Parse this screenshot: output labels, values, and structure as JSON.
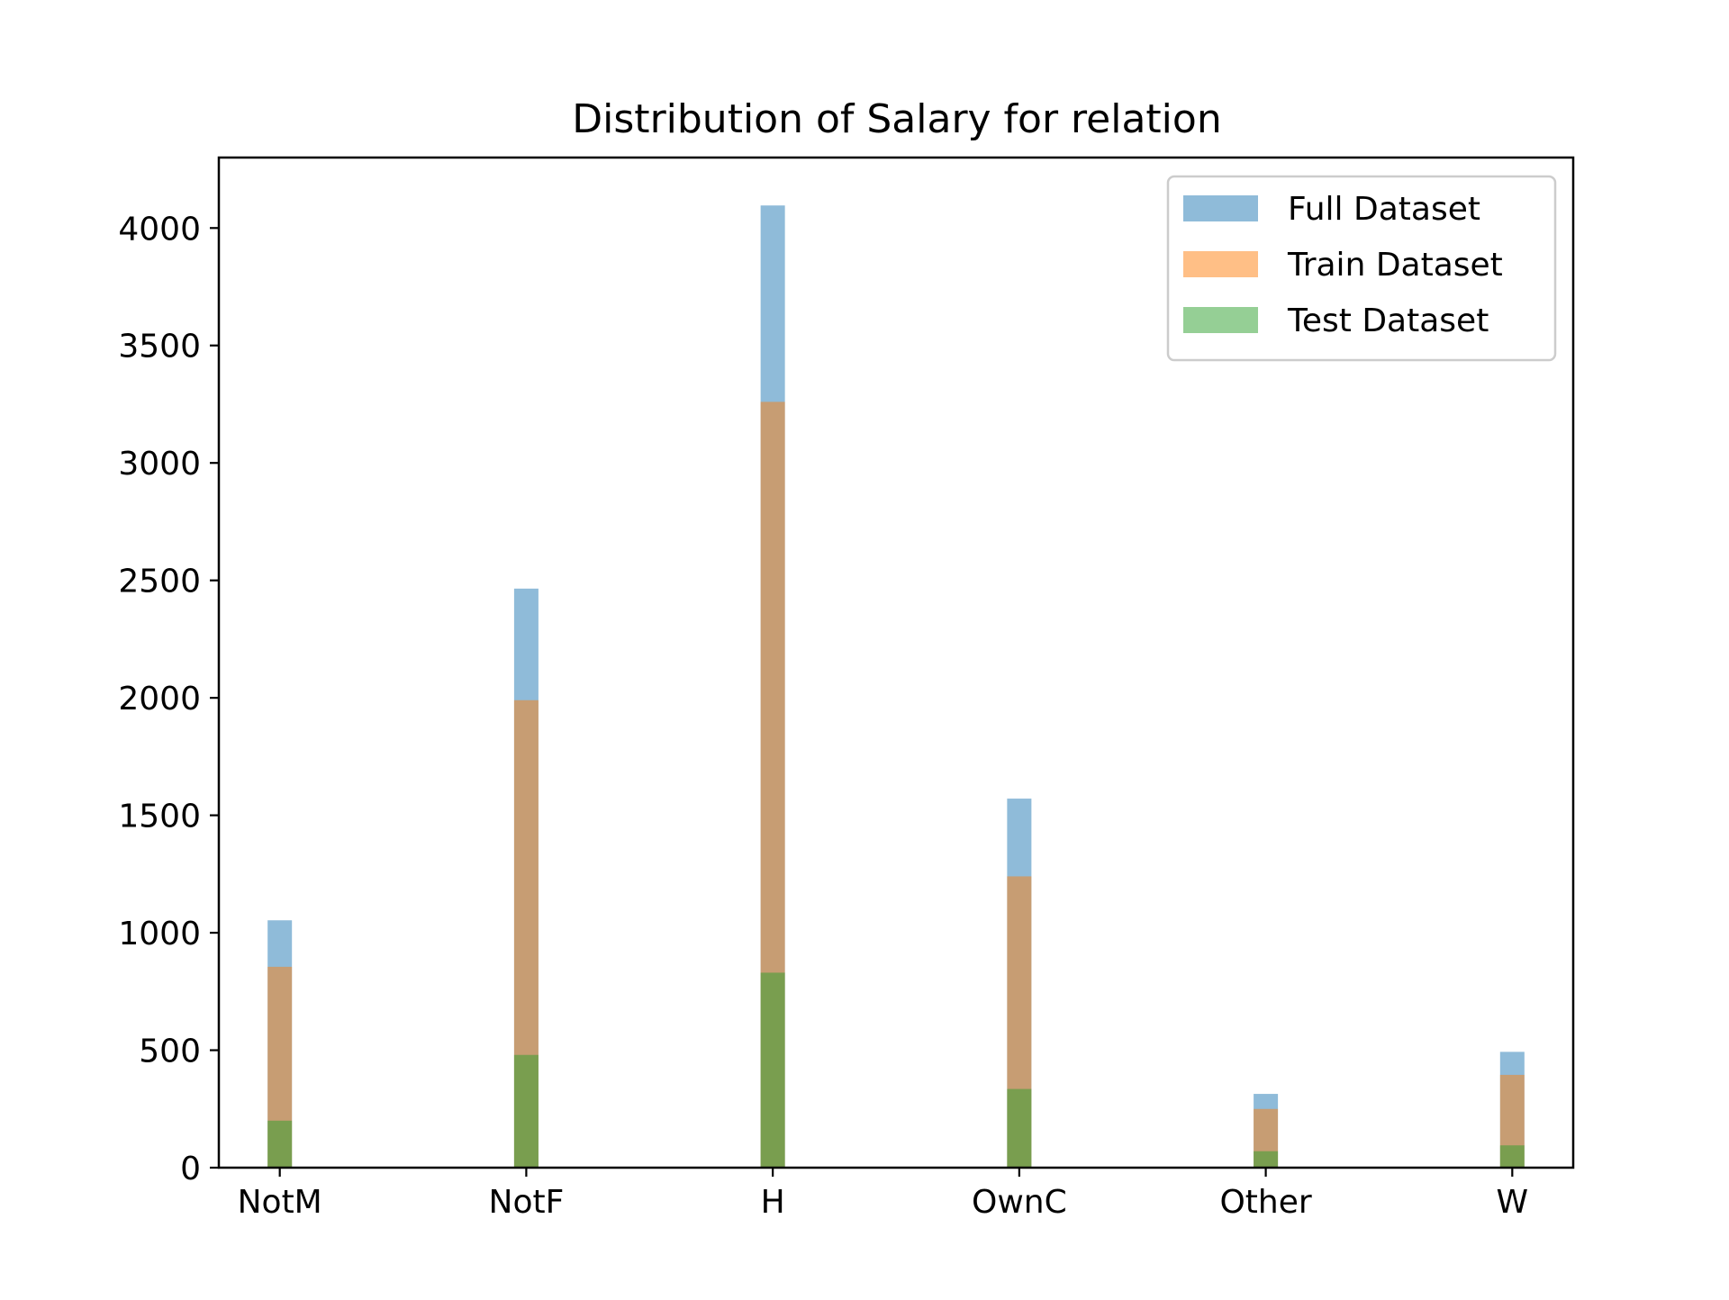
{
  "chart_data": {
    "type": "bar",
    "title": "Distribution of Salary for relation",
    "xlabel": "",
    "ylabel": "",
    "categories": [
      "NotM",
      "NotF",
      "H",
      "OwnC",
      "Other",
      "W"
    ],
    "ylim": [
      0,
      4300
    ],
    "yticks": [
      0,
      500,
      1000,
      1500,
      2000,
      2500,
      3000,
      3500,
      4000
    ],
    "grid": false,
    "legend_position": "top-right",
    "overlay": true,
    "series": [
      {
        "name": "Full Dataset",
        "color": "#1f77b4",
        "opacity": 0.5,
        "values": [
          1053,
          2465,
          4096,
          1571,
          314,
          493
        ]
      },
      {
        "name": "Train Dataset",
        "color": "#ff7f0e",
        "opacity": 0.5,
        "values": [
          855,
          1990,
          3260,
          1240,
          250,
          395
        ]
      },
      {
        "name": "Test Dataset",
        "color": "#2ca02c",
        "opacity": 0.5,
        "values": [
          200,
          480,
          830,
          335,
          70,
          95
        ]
      }
    ]
  }
}
